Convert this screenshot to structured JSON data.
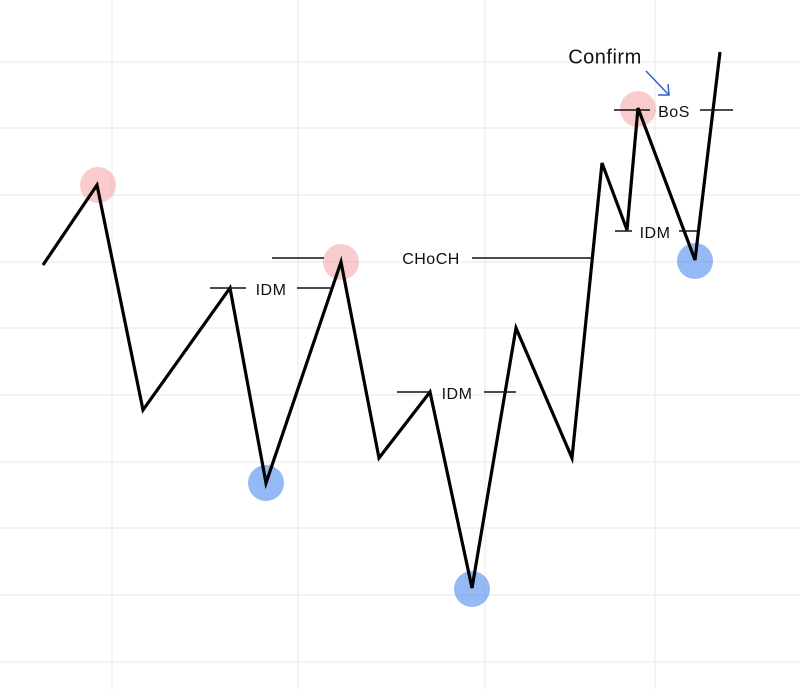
{
  "annotations": {
    "confirm": "Confirm",
    "bos": "BoS",
    "choch": "CHoCH",
    "idm": [
      "IDM",
      "IDM",
      "IDM"
    ]
  }
}
